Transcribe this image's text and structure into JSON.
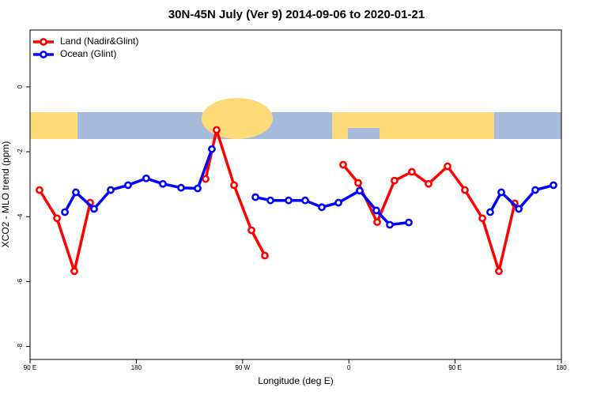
{
  "chart_data": {
    "type": "line",
    "title": "30N-45N July (Ver 9)   2014-09-06 to 2020-01-21",
    "x_label": "Longitude (deg E)",
    "y_label": "XCO2 - MLO trend (ppm)",
    "xlim": [
      90,
      540
    ],
    "xticks": [
      {
        "value": 90,
        "label": "90 E"
      },
      {
        "value": 180,
        "label": "180"
      },
      {
        "value": 270,
        "label": "90 W"
      },
      {
        "value": 360,
        "label": "0"
      },
      {
        "value": 450,
        "label": "90 E"
      },
      {
        "value": 540,
        "label": "180"
      }
    ],
    "ylim": [
      -8.4,
      1.75
    ],
    "yticks": [
      0,
      -2,
      -4,
      -6,
      -8
    ],
    "grid": false,
    "legend": "top-left",
    "series": [
      {
        "name": "Land (Nadir&Glint)",
        "color": "#ff0000",
        "x": [
          98.0,
          112.8,
          127.5,
          140.9,
          null,
          238.7,
          248.0,
          262.8,
          277.5,
          288.9,
          null,
          355.2,
          367.9,
          384.0,
          398.7,
          413.4,
          427.5,
          443.6,
          458.3,
          473.1,
          487.1,
          500.5
        ],
        "values": [
          -3.18,
          -4.05,
          -5.68,
          -3.57,
          null,
          -2.84,
          -1.33,
          -3.03,
          -4.42,
          -5.2,
          null,
          -2.4,
          -2.96,
          -4.17,
          -2.89,
          -2.62,
          -2.99,
          -2.45,
          -3.18,
          -4.05,
          -5.68,
          -3.59
        ]
      },
      {
        "name": "Ocean (Glint)",
        "color": "#0000ff",
        "x": [
          119.5,
          128.8,
          144.2,
          158.3,
          173.0,
          188.4,
          202.5,
          217.9,
          232.0,
          244.0,
          null,
          280.9,
          293.6,
          309.0,
          323.0,
          337.1,
          351.2,
          369.2,
          383.3,
          394.7,
          410.8,
          null,
          479.7,
          489.1,
          503.9,
          517.9,
          533.3
        ],
        "values": [
          -3.86,
          -3.25,
          -3.76,
          -3.18,
          -3.03,
          -2.82,
          -2.99,
          -3.11,
          -3.13,
          -1.92,
          null,
          -3.4,
          -3.5,
          -3.5,
          -3.5,
          -3.71,
          -3.57,
          -3.2,
          -3.81,
          -4.25,
          -4.18,
          null,
          -3.86,
          -3.25,
          -3.76,
          -3.18,
          -3.03
        ]
      }
    ]
  }
}
